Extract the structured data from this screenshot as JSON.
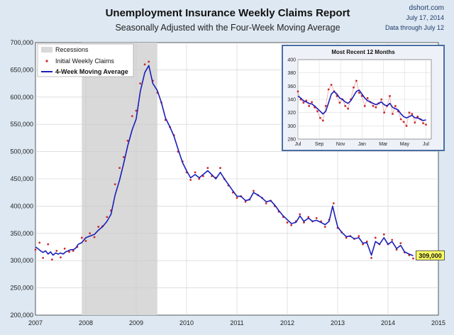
{
  "header": {
    "title": "Unemployment Insurance Weekly Claims Report",
    "subtitle": "Seasonally Adjusted with the Four-Week Moving Average",
    "source": "dshort.com",
    "date": "July 17, 2014",
    "data_through": "Data through July 12"
  },
  "colors": {
    "background": "#dde8f2",
    "plot_bg": "#ffffff",
    "recession": "#d9d9d9",
    "claims": "#cc2a2a",
    "moving_avg": "#1b1fb8",
    "inset_border": "#4a6fa5",
    "callout_bg": "#ffff66"
  },
  "chart_data": [
    {
      "type": "line",
      "title": "Unemployment Insurance Weekly Claims Report",
      "ylim": [
        200000,
        700000
      ],
      "xlim": [
        2007,
        2015
      ],
      "y_ticks": [
        "200,000",
        "250,000",
        "300,000",
        "350,000",
        "400,000",
        "450,000",
        "500,000",
        "550,000",
        "600,000",
        "650,000",
        "700,000"
      ],
      "x_ticks": [
        "2007",
        "2008",
        "2009",
        "2010",
        "2011",
        "2012",
        "2013",
        "2014",
        "2015"
      ],
      "recession": {
        "label": "Recessions",
        "start": 2007.92,
        "end": 2009.42
      },
      "series": [
        {
          "name": "Initial Weekly Claims",
          "style": "points",
          "points": [
            [
              2007.0,
              320000
            ],
            [
              2007.08,
              333000
            ],
            [
              2007.15,
              305000
            ],
            [
              2007.25,
              330000
            ],
            [
              2007.33,
              302000
            ],
            [
              2007.42,
              318000
            ],
            [
              2007.5,
              306000
            ],
            [
              2007.58,
              322000
            ],
            [
              2007.67,
              316000
            ],
            [
              2007.75,
              318000
            ],
            [
              2007.83,
              325000
            ],
            [
              2007.92,
              342000
            ],
            [
              2008.0,
              336000
            ],
            [
              2008.08,
              350000
            ],
            [
              2008.17,
              343000
            ],
            [
              2008.25,
              362000
            ],
            [
              2008.33,
              363000
            ],
            [
              2008.42,
              380000
            ],
            [
              2008.5,
              392000
            ],
            [
              2008.58,
              440000
            ],
            [
              2008.67,
              470000
            ],
            [
              2008.75,
              490000
            ],
            [
              2008.83,
              520000
            ],
            [
              2008.92,
              565000
            ],
            [
              2009.0,
              575000
            ],
            [
              2009.08,
              625000
            ],
            [
              2009.17,
              660000
            ],
            [
              2009.25,
              665000
            ],
            [
              2009.33,
              630000
            ],
            [
              2009.42,
              608000
            ],
            [
              2009.5,
              590000
            ],
            [
              2009.58,
              558000
            ],
            [
              2009.67,
              545000
            ],
            [
              2009.75,
              530000
            ],
            [
              2009.83,
              500000
            ],
            [
              2009.92,
              482000
            ],
            [
              2010.0,
              462000
            ],
            [
              2010.08,
              448000
            ],
            [
              2010.17,
              462000
            ],
            [
              2010.25,
              450000
            ],
            [
              2010.33,
              455000
            ],
            [
              2010.42,
              470000
            ],
            [
              2010.5,
              455000
            ],
            [
              2010.58,
              452000
            ],
            [
              2010.67,
              470000
            ],
            [
              2010.75,
              450000
            ],
            [
              2010.83,
              438000
            ],
            [
              2010.92,
              425000
            ],
            [
              2011.0,
              415000
            ],
            [
              2011.08,
              418000
            ],
            [
              2011.17,
              408000
            ],
            [
              2011.25,
              412000
            ],
            [
              2011.33,
              428000
            ],
            [
              2011.42,
              420000
            ],
            [
              2011.5,
              415000
            ],
            [
              2011.58,
              405000
            ],
            [
              2011.67,
              410000
            ],
            [
              2011.75,
              400000
            ],
            [
              2011.83,
              390000
            ],
            [
              2011.92,
              380000
            ],
            [
              2012.0,
              370000
            ],
            [
              2012.08,
              365000
            ],
            [
              2012.17,
              372000
            ],
            [
              2012.25,
              385000
            ],
            [
              2012.33,
              370000
            ],
            [
              2012.42,
              380000
            ],
            [
              2012.5,
              372000
            ],
            [
              2012.58,
              378000
            ],
            [
              2012.67,
              372000
            ],
            [
              2012.75,
              362000
            ],
            [
              2012.83,
              375000
            ],
            [
              2012.92,
              405000
            ],
            [
              2013.0,
              360000
            ],
            [
              2013.08,
              352000
            ],
            [
              2013.17,
              342000
            ],
            [
              2013.25,
              345000
            ],
            [
              2013.33,
              340000
            ],
            [
              2013.42,
              345000
            ],
            [
              2013.5,
              330000
            ],
            [
              2013.58,
              335000
            ],
            [
              2013.67,
              305000
            ],
            [
              2013.75,
              342000
            ],
            [
              2013.83,
              330000
            ],
            [
              2013.92,
              348000
            ],
            [
              2014.0,
              330000
            ],
            [
              2014.08,
              338000
            ],
            [
              2014.17,
              320000
            ],
            [
              2014.25,
              332000
            ],
            [
              2014.33,
              315000
            ],
            [
              2014.42,
              310000
            ],
            [
              2014.5,
              304000
            ]
          ]
        },
        {
          "name": "4-Week Moving Average",
          "style": "line",
          "points": [
            [
              2007.0,
              325000
            ],
            [
              2007.05,
              322000
            ],
            [
              2007.1,
              318000
            ],
            [
              2007.15,
              315000
            ],
            [
              2007.2,
              318000
            ],
            [
              2007.25,
              312000
            ],
            [
              2007.3,
              316000
            ],
            [
              2007.35,
              310000
            ],
            [
              2007.4,
              314000
            ],
            [
              2007.45,
              312000
            ],
            [
              2007.5,
              314000
            ],
            [
              2007.55,
              312000
            ],
            [
              2007.6,
              316000
            ],
            [
              2007.65,
              318000
            ],
            [
              2007.7,
              320000
            ],
            [
              2007.75,
              320000
            ],
            [
              2007.8,
              323000
            ],
            [
              2007.85,
              330000
            ],
            [
              2007.92,
              333000
            ],
            [
              2008.0,
              342000
            ],
            [
              2008.08,
              345000
            ],
            [
              2008.17,
              348000
            ],
            [
              2008.25,
              356000
            ],
            [
              2008.33,
              362000
            ],
            [
              2008.42,
              372000
            ],
            [
              2008.5,
              385000
            ],
            [
              2008.58,
              420000
            ],
            [
              2008.67,
              448000
            ],
            [
              2008.75,
              478000
            ],
            [
              2008.83,
              510000
            ],
            [
              2008.92,
              540000
            ],
            [
              2009.0,
              560000
            ],
            [
              2009.08,
              610000
            ],
            [
              2009.17,
              645000
            ],
            [
              2009.25,
              658000
            ],
            [
              2009.33,
              625000
            ],
            [
              2009.42,
              612000
            ],
            [
              2009.5,
              590000
            ],
            [
              2009.58,
              562000
            ],
            [
              2009.67,
              545000
            ],
            [
              2009.75,
              528000
            ],
            [
              2009.83,
              505000
            ],
            [
              2009.92,
              480000
            ],
            [
              2010.0,
              465000
            ],
            [
              2010.08,
              452000
            ],
            [
              2010.17,
              458000
            ],
            [
              2010.25,
              452000
            ],
            [
              2010.33,
              458000
            ],
            [
              2010.42,
              465000
            ],
            [
              2010.5,
              458000
            ],
            [
              2010.58,
              450000
            ],
            [
              2010.67,
              462000
            ],
            [
              2010.75,
              450000
            ],
            [
              2010.83,
              440000
            ],
            [
              2010.92,
              428000
            ],
            [
              2011.0,
              418000
            ],
            [
              2011.08,
              418000
            ],
            [
              2011.17,
              410000
            ],
            [
              2011.25,
              412000
            ],
            [
              2011.33,
              425000
            ],
            [
              2011.42,
              420000
            ],
            [
              2011.5,
              415000
            ],
            [
              2011.58,
              408000
            ],
            [
              2011.67,
              410000
            ],
            [
              2011.75,
              402000
            ],
            [
              2011.83,
              392000
            ],
            [
              2011.92,
              382000
            ],
            [
              2012.0,
              375000
            ],
            [
              2012.08,
              368000
            ],
            [
              2012.17,
              370000
            ],
            [
              2012.25,
              382000
            ],
            [
              2012.33,
              372000
            ],
            [
              2012.42,
              378000
            ],
            [
              2012.5,
              372000
            ],
            [
              2012.58,
              374000
            ],
            [
              2012.67,
              370000
            ],
            [
              2012.75,
              366000
            ],
            [
              2012.83,
              372000
            ],
            [
              2012.9,
              400000
            ],
            [
              2012.95,
              380000
            ],
            [
              2013.0,
              362000
            ],
            [
              2013.08,
              352000
            ],
            [
              2013.17,
              344000
            ],
            [
              2013.25,
              345000
            ],
            [
              2013.33,
              340000
            ],
            [
              2013.42,
              342000
            ],
            [
              2013.5,
              332000
            ],
            [
              2013.58,
              333000
            ],
            [
              2013.67,
              310000
            ],
            [
              2013.75,
              335000
            ],
            [
              2013.83,
              330000
            ],
            [
              2013.92,
              342000
            ],
            [
              2014.0,
              330000
            ],
            [
              2014.08,
              335000
            ],
            [
              2014.17,
              322000
            ],
            [
              2014.25,
              328000
            ],
            [
              2014.33,
              316000
            ],
            [
              2014.42,
              312000
            ],
            [
              2014.5,
              309000
            ]
          ]
        }
      ],
      "callout": {
        "label": "309,000",
        "x": 2014.5,
        "y": 309000
      },
      "legend": {
        "placement": "top-left",
        "entries": [
          "Recessions",
          "Initial Weekly Claims",
          "4-Week Moving Average"
        ]
      }
    },
    {
      "type": "line",
      "title": "Most Recent 12 Months",
      "ylim": [
        280,
        400
      ],
      "xlim": [
        0,
        12.5
      ],
      "y_ticks": [
        "280",
        "300",
        "320",
        "340",
        "360",
        "380",
        "400"
      ],
      "x_ticks": [
        {
          "label": "Jul",
          "x": 0
        },
        {
          "label": "Sep",
          "x": 2
        },
        {
          "label": "Nov",
          "x": 4
        },
        {
          "label": "Jan",
          "x": 6
        },
        {
          "label": "Mar",
          "x": 8
        },
        {
          "label": "May",
          "x": 10
        },
        {
          "label": "Jul",
          "x": 12
        }
      ],
      "series": [
        {
          "name": "Initial Weekly Claims",
          "style": "line-points",
          "values": [
            352,
            340,
            335,
            338,
            330,
            336,
            328,
            322,
            312,
            308,
            330,
            355,
            362,
            352,
            345,
            335,
            340,
            330,
            326,
            340,
            358,
            368,
            350,
            345,
            330,
            342,
            336,
            330,
            328,
            334,
            340,
            320,
            330,
            345,
            318,
            330,
            322,
            310,
            306,
            300,
            320,
            318,
            305,
            314,
            310,
            304,
            302
          ]
        },
        {
          "name": "4-Week Moving Average",
          "style": "line",
          "values": [
            345,
            342,
            338,
            336,
            334,
            333,
            330,
            326,
            322,
            318,
            322,
            335,
            348,
            352,
            348,
            342,
            340,
            336,
            334,
            338,
            345,
            352,
            354,
            348,
            342,
            338,
            336,
            334,
            332,
            334,
            336,
            332,
            330,
            334,
            328,
            326,
            324,
            318,
            314,
            312,
            314,
            316,
            312,
            312,
            310,
            308,
            309
          ]
        }
      ]
    }
  ]
}
